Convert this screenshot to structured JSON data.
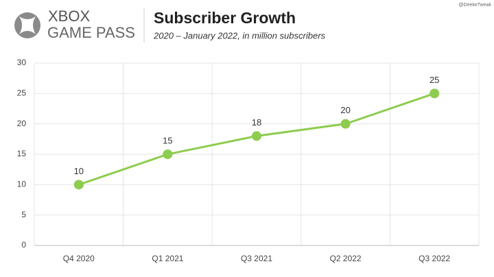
{
  "branding": {
    "logo_line1": "XBOX",
    "logo_line2": "GAME PASS",
    "watermark": "@DeekeTweak"
  },
  "chart_data": {
    "type": "line",
    "title": "Subscriber Growth",
    "subtitle": "2020 – January 2022, in million subscribers",
    "categories": [
      "Q4 2020",
      "Q1 2021",
      "Q3 2021",
      "Q2 2022",
      "Q3 2022"
    ],
    "values": [
      10,
      15,
      18,
      20,
      25
    ],
    "color": "#8dcc4f",
    "ylim": [
      0,
      30
    ],
    "yticks": [
      0,
      5,
      10,
      15,
      20,
      25,
      30
    ],
    "grid": true
  }
}
